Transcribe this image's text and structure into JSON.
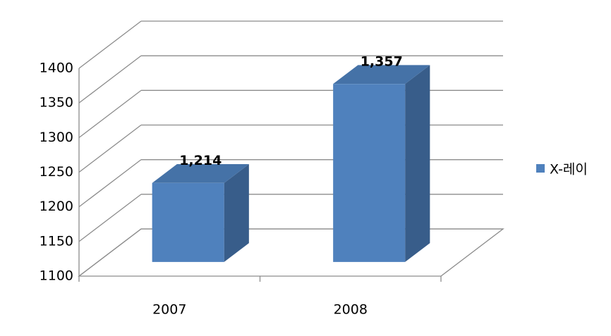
{
  "chart_data": {
    "type": "bar3d",
    "categories": [
      "2007",
      "2008"
    ],
    "series": [
      {
        "name": "X-레이",
        "color": "#4f81bd",
        "values": [
          1214,
          1357
        ],
        "value_labels": [
          "1,214",
          "1,357"
        ]
      }
    ],
    "ylim": [
      1100,
      1400
    ],
    "yticks": [
      1100,
      1150,
      1200,
      1250,
      1300,
      1350,
      1400
    ],
    "grid": true,
    "legend": "right"
  }
}
